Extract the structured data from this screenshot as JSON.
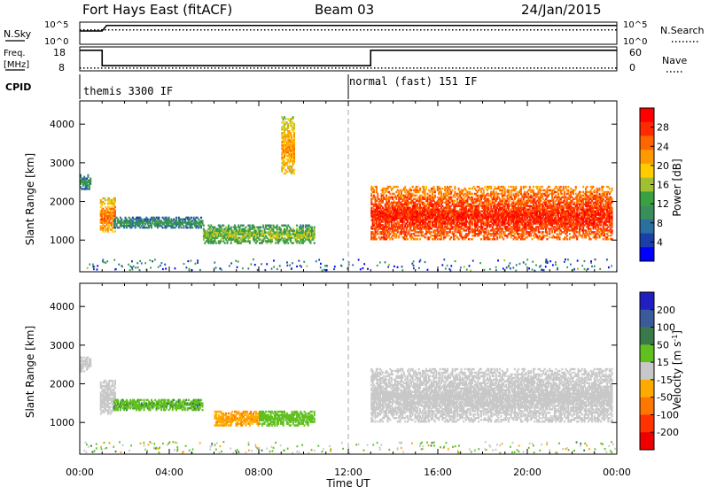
{
  "header": {
    "title": "Fort Hays East (fitACF)",
    "beam": "Beam 03",
    "date": "24/Jan/2015"
  },
  "top_panels": {
    "nsky_label": "N.Sky",
    "nsearch_label": "N.Search",
    "nsky_ticks": [
      "10^5",
      "10^0"
    ],
    "nsearch_ticks": [
      "10^5",
      "10^0"
    ],
    "freq_label_1": "Freq.",
    "freq_label_2": "[MHz]",
    "freq_ticks": [
      "18",
      "8"
    ],
    "nave_label": "Nave",
    "nave_ticks": [
      "60",
      "0"
    ],
    "cpid_label": "CPID",
    "cpid_modes": [
      {
        "text": "themis 3300 IF",
        "start_hour": 0
      },
      {
        "text": "normal (fast) 151 IF",
        "start_hour": 12.0
      }
    ]
  },
  "power_panel": {
    "ylabel": "Slant Range [km]",
    "colorbar_label": "Power [dB]",
    "colorbar_ticks": [
      "28",
      "24",
      "20",
      "16",
      "12",
      "8",
      "4"
    ],
    "colors": [
      "#0000ff",
      "#1a3fa8",
      "#2a6fa0",
      "#3a8e5a",
      "#3aa040",
      "#a0c030",
      "#ffcc00",
      "#ff9900",
      "#ff6600",
      "#ff2a00",
      "#ff0000"
    ]
  },
  "velocity_panel": {
    "ylabel": "Slant Range [km]",
    "colorbar_label": "Velocity [m s^-1]",
    "colorbar_ticks": [
      "200",
      "100",
      "50",
      "15",
      "-15",
      "-50",
      "-100",
      "-200"
    ],
    "colors": [
      "#2020c0",
      "#3a5a9a",
      "#3a7a4a",
      "#60c020",
      "#c8c8c8",
      "#ffaa00",
      "#ff7700",
      "#ff3300",
      "#ee0000"
    ]
  },
  "chart_data": [
    {
      "type": "heatmap",
      "title": "Power",
      "ylabel": "Slant Range [km]",
      "y_ticks": [
        1000,
        2000,
        3000,
        4000
      ],
      "ylim": [
        180,
        4600
      ],
      "xlim": [
        0,
        24
      ],
      "x_ticks": [
        "00:00",
        "04:00",
        "08:00",
        "12:00",
        "16:00",
        "20:00",
        "00:00"
      ],
      "xlabel": "Time UT",
      "colorbar": {
        "label": "Power [dB]",
        "range": [
          0,
          30
        ],
        "ticks": [
          4,
          8,
          12,
          16,
          20,
          24,
          28
        ]
      },
      "echo_regions": [
        {
          "t": [
            0.0,
            0.5
          ],
          "r": [
            2300,
            2700
          ],
          "power": 6
        },
        {
          "t": [
            0.9,
            1.6
          ],
          "r": [
            1200,
            2100
          ],
          "power": 18
        },
        {
          "t": [
            1.5,
            5.5
          ],
          "r": [
            1300,
            1600
          ],
          "power": 6
        },
        {
          "t": [
            5.5,
            10.5
          ],
          "r": [
            900,
            1400
          ],
          "power": 10
        },
        {
          "t": [
            9.0,
            9.6
          ],
          "r": [
            2700,
            4200
          ],
          "power": 16
        },
        {
          "t": [
            13.0,
            23.8
          ],
          "r": [
            1000,
            2400
          ],
          "power": 22
        }
      ]
    },
    {
      "type": "heatmap",
      "title": "Velocity",
      "ylabel": "Slant Range [km]",
      "y_ticks": [
        1000,
        2000,
        3000,
        4000
      ],
      "ylim": [
        180,
        4600
      ],
      "xlim": [
        0,
        24
      ],
      "x_ticks": [
        "00:00",
        "04:00",
        "08:00",
        "12:00",
        "16:00",
        "20:00",
        "00:00"
      ],
      "xlabel": "Time UT",
      "colorbar": {
        "label": "Velocity [m s^-1]",
        "range": [
          -250,
          250
        ],
        "ticks": [
          200,
          100,
          50,
          15,
          -15,
          -50,
          -100,
          -200
        ]
      },
      "echo_regions": [
        {
          "t": [
            0.0,
            0.5
          ],
          "r": [
            2300,
            2700
          ],
          "velocity": 0
        },
        {
          "t": [
            0.9,
            1.6
          ],
          "r": [
            1200,
            2100
          ],
          "velocity": 0
        },
        {
          "t": [
            1.5,
            5.5
          ],
          "r": [
            1300,
            1600
          ],
          "velocity": 40
        },
        {
          "t": [
            6.0,
            8.0
          ],
          "r": [
            900,
            1300
          ],
          "velocity": -40
        },
        {
          "t": [
            8.0,
            10.5
          ],
          "r": [
            900,
            1300
          ],
          "velocity": 30
        },
        {
          "t": [
            13.0,
            23.8
          ],
          "r": [
            1000,
            2400
          ],
          "velocity": 0
        }
      ]
    },
    {
      "type": "line",
      "title": "N.Sky / N.Search",
      "xlim": [
        0,
        24
      ],
      "series": [
        {
          "name": "N.Sky",
          "x": [
            0,
            1,
            1.2,
            24
          ],
          "y": [
            0.6,
            0.6,
            0.85,
            0.85
          ]
        },
        {
          "name": "N.Search",
          "x": [
            0,
            24
          ],
          "y": [
            0.65,
            0.65
          ]
        }
      ]
    },
    {
      "type": "line",
      "title": "Freq. / Nave",
      "xlim": [
        0,
        24
      ],
      "series": [
        {
          "name": "Freq. [MHz]",
          "x": [
            0,
            1.0,
            1.0,
            13.0,
            13.0,
            24
          ],
          "y": [
            18,
            18,
            9,
            9,
            18,
            18
          ]
        },
        {
          "name": "Nave",
          "x": [
            0,
            24
          ],
          "y": [
            7,
            7
          ]
        }
      ]
    }
  ]
}
